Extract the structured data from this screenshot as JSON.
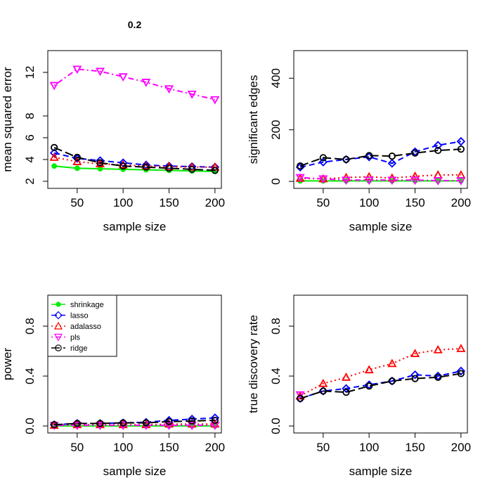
{
  "chart_data": [
    {
      "type": "line",
      "title": "0.2",
      "xlabel": "sample size",
      "ylabel": "mean squared error",
      "x": [
        25,
        50,
        75,
        100,
        125,
        150,
        175,
        200
      ],
      "xlim": [
        18,
        207
      ],
      "xticks": [
        50,
        100,
        150,
        200
      ],
      "ylim": [
        1.35,
        14.0
      ],
      "yticks": [
        2,
        4,
        6,
        8,
        12
      ],
      "series": [
        {
          "name": "shrinkage",
          "color": "#00ee00",
          "linestyle": "solid",
          "marker": "dot",
          "values": [
            3.4,
            3.2,
            3.15,
            3.1,
            3.05,
            3.0,
            2.95,
            2.9
          ]
        },
        {
          "name": "lasso",
          "color": "#0000ff",
          "linestyle": "dashed",
          "marker": "diamond",
          "values": [
            4.6,
            4.1,
            3.9,
            3.7,
            3.5,
            3.4,
            3.35,
            3.3
          ]
        },
        {
          "name": "adalasso",
          "color": "#ff0000",
          "linestyle": "dotted",
          "marker": "triangle",
          "values": [
            4.2,
            3.8,
            3.6,
            3.5,
            3.4,
            3.35,
            3.3,
            3.3
          ]
        },
        {
          "name": "pls",
          "color": "#ff00ff",
          "linestyle": "dotdash",
          "marker": "triangle-down",
          "values": [
            10.8,
            12.3,
            12.1,
            11.6,
            11.1,
            10.5,
            10.0,
            9.5
          ]
        },
        {
          "name": "ridge",
          "color": "#000000",
          "linestyle": "longdash",
          "marker": "circle",
          "values": [
            5.1,
            4.2,
            3.7,
            3.4,
            3.3,
            3.2,
            3.1,
            3.0
          ]
        }
      ]
    },
    {
      "type": "line",
      "xlabel": "sample size",
      "ylabel": "significant edges",
      "x": [
        25,
        50,
        75,
        100,
        125,
        150,
        175,
        200
      ],
      "xlim": [
        18,
        207
      ],
      "xticks": [
        50,
        100,
        150,
        200
      ],
      "ylim": [
        -27,
        507
      ],
      "yticks": [
        0,
        200,
        400
      ],
      "series": [
        {
          "name": "shrinkage",
          "color": "#00ee00",
          "linestyle": "solid",
          "marker": "dot",
          "values": [
            2,
            2,
            2,
            2,
            2,
            2,
            2,
            2
          ]
        },
        {
          "name": "lasso",
          "color": "#0000ff",
          "linestyle": "dashed",
          "marker": "diamond",
          "values": [
            55,
            75,
            85,
            95,
            70,
            115,
            140,
            155
          ]
        },
        {
          "name": "adalasso",
          "color": "#ff0000",
          "linestyle": "dotted",
          "marker": "triangle",
          "values": [
            12,
            10,
            15,
            18,
            13,
            20,
            25,
            25
          ]
        },
        {
          "name": "pls",
          "color": "#ff00ff",
          "linestyle": "dotdash",
          "marker": "triangle-down",
          "values": [
            15,
            10,
            5,
            5,
            5,
            5,
            3,
            3
          ]
        },
        {
          "name": "ridge",
          "color": "#000000",
          "linestyle": "longdash",
          "marker": "circle",
          "values": [
            60,
            92,
            85,
            100,
            98,
            110,
            120,
            125
          ]
        }
      ]
    },
    {
      "type": "line",
      "xlabel": "sample size",
      "ylabel": "power",
      "legend": "top left",
      "x": [
        25,
        50,
        75,
        100,
        125,
        150,
        175,
        200
      ],
      "xlim": [
        18,
        207
      ],
      "xticks": [
        50,
        100,
        150,
        200
      ],
      "ylim": [
        -0.056,
        1.048
      ],
      "yticks": [
        {
          "value": 0,
          "label": "0.0"
        },
        0.4,
        0.8
      ],
      "series": [
        {
          "name": "shrinkage",
          "color": "#00ee00",
          "linestyle": "solid",
          "marker": "dot",
          "values": [
            0,
            0,
            0,
            0,
            0,
            0,
            0,
            0
          ]
        },
        {
          "name": "lasso",
          "color": "#0000ff",
          "linestyle": "dashed",
          "marker": "diamond",
          "values": [
            0.01,
            0.02,
            0.02,
            0.025,
            0.03,
            0.045,
            0.055,
            0.065
          ]
        },
        {
          "name": "adalasso",
          "color": "#ff0000",
          "linestyle": "dotted",
          "marker": "triangle",
          "values": [
            0.005,
            0.01,
            0.01,
            0.01,
            0.01,
            0.015,
            0.015,
            0.015
          ]
        },
        {
          "name": "pls",
          "color": "#ff00ff",
          "linestyle": "dotdash",
          "marker": "triangle-down",
          "values": [
            0.005,
            0.005,
            0.005,
            0.005,
            0.005,
            0.005,
            0.005,
            0.005
          ]
        },
        {
          "name": "ridge",
          "color": "#000000",
          "linestyle": "longdash",
          "marker": "circle",
          "values": [
            0.01,
            0.02,
            0.02,
            0.025,
            0.025,
            0.035,
            0.04,
            0.045
          ]
        }
      ]
    },
    {
      "type": "line",
      "xlabel": "sample size",
      "ylabel": "true discovery rate",
      "x": [
        25,
        50,
        75,
        100,
        125,
        150,
        175,
        200
      ],
      "xlim": [
        18,
        207
      ],
      "xticks": [
        50,
        100,
        150,
        200
      ],
      "ylim": [
        -0.056,
        1.048
      ],
      "yticks": [
        {
          "value": 0,
          "label": "0.0"
        },
        0.4,
        0.8
      ],
      "series": [
        {
          "name": "lasso",
          "color": "#0000ff",
          "linestyle": "dashed",
          "marker": "diamond",
          "values": [
            0.22,
            0.28,
            0.3,
            0.33,
            0.36,
            0.41,
            0.4,
            0.44
          ]
        },
        {
          "name": "adalasso",
          "color": "#ff0000",
          "linestyle": "dotted",
          "marker": "triangle",
          "values": [
            0.24,
            0.34,
            0.39,
            0.45,
            0.5,
            0.58,
            0.61,
            0.62
          ]
        },
        {
          "name": "pls",
          "color": "#ff00ff",
          "linestyle": "dotdash",
          "marker": "triangle-down",
          "values": [
            0.25,
            null,
            null,
            null,
            null,
            null,
            null,
            null
          ]
        },
        {
          "name": "ridge",
          "color": "#000000",
          "linestyle": "longdash",
          "marker": "circle",
          "values": [
            0.22,
            0.28,
            0.27,
            0.32,
            0.36,
            0.38,
            0.39,
            0.42
          ]
        }
      ]
    }
  ]
}
